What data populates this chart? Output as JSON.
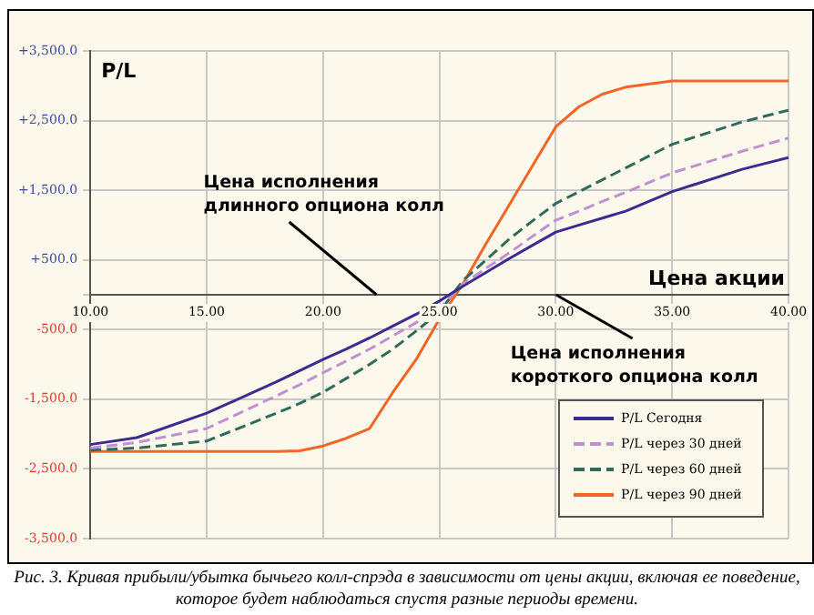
{
  "chart_data": {
    "type": "line",
    "xlabel": "Цена акции",
    "ylabel": "P/L",
    "x": [
      10,
      12,
      15,
      18,
      19,
      20,
      21,
      22,
      23,
      24,
      25,
      26,
      27,
      28,
      29,
      30,
      31,
      32,
      33,
      35,
      38,
      40
    ],
    "series": [
      {
        "name": "P/L Сегодня",
        "color": "#3a2d8f",
        "line_style": "solid",
        "values": [
          -2150,
          -2050,
          -1700,
          -1250,
          -1090,
          -930,
          -780,
          -620,
          -450,
          -280,
          -90,
          120,
          320,
          520,
          710,
          900,
          1000,
          1100,
          1200,
          1480,
          1800,
          1970
        ]
      },
      {
        "name": "P/L через 30 дней",
        "color": "#c090d0",
        "line_style": "dashed",
        "values": [
          -2200,
          -2120,
          -1920,
          -1450,
          -1290,
          -1120,
          -950,
          -780,
          -590,
          -400,
          -200,
          150,
          380,
          600,
          840,
          1070,
          1200,
          1340,
          1470,
          1750,
          2060,
          2250
        ]
      },
      {
        "name": "P/L через 60 дней",
        "color": "#2f6b5a",
        "line_style": "dashed",
        "values": [
          -2230,
          -2200,
          -2100,
          -1700,
          -1560,
          -1400,
          -1200,
          -1000,
          -780,
          -520,
          -250,
          200,
          500,
          800,
          1060,
          1310,
          1480,
          1650,
          1820,
          2160,
          2480,
          2650
        ]
      },
      {
        "name": "P/L через 90 дней",
        "color": "#f26522",
        "line_style": "solid",
        "values": [
          -2250,
          -2250,
          -2250,
          -2250,
          -2240,
          -2170,
          -2060,
          -1920,
          -1400,
          -930,
          -350,
          150,
          730,
          1290,
          1850,
          2410,
          2700,
          2880,
          2980,
          3070,
          3070,
          3070
        ]
      }
    ],
    "xlim": [
      10,
      40
    ],
    "ylim": [
      -3500,
      3500
    ],
    "xticks": [
      {
        "value": 10,
        "label": "10.00"
      },
      {
        "value": 15,
        "label": "15.00"
      },
      {
        "value": 20,
        "label": "20.00"
      },
      {
        "value": 25,
        "label": "25.00"
      },
      {
        "value": 30,
        "label": "30.00"
      },
      {
        "value": 35,
        "label": "35.00"
      },
      {
        "value": 40,
        "label": "40.00"
      }
    ],
    "yticks": [
      {
        "value": -3500,
        "label": "-3,500.0"
      },
      {
        "value": -2500,
        "label": "-2,500.0"
      },
      {
        "value": -1500,
        "label": "-1,500.0"
      },
      {
        "value": -500,
        "label": "-500.0"
      },
      {
        "value": 0,
        "label": null
      },
      {
        "value": 500,
        "label": "+500.0"
      },
      {
        "value": 1500,
        "label": "+1,500.0"
      },
      {
        "value": 2500,
        "label": "+2,500.0"
      },
      {
        "value": 3500,
        "label": "+3,500.0"
      }
    ],
    "grid": true,
    "legend": "bottom right",
    "marker": "none",
    "annotations": [
      "Цена исполнения длинного опциона колл",
      "Цена исполнения короткого опциона колл",
      "Рис. 3. Кривая прибыли/убытка бычьего колл-спрэда в зависимости от цены акции, включая ее поведение, которое будет наблюдаться спустя разные периоды времени."
    ]
  }
}
